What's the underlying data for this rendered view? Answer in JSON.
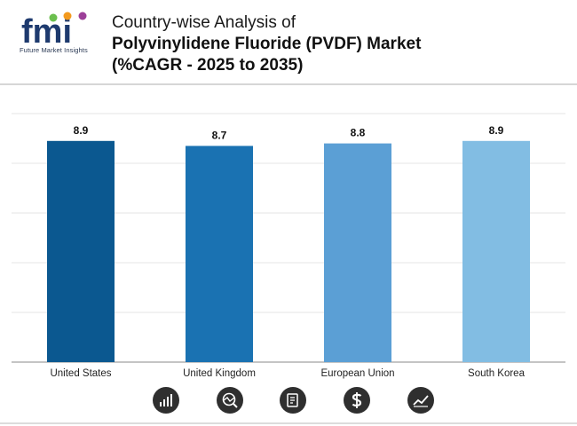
{
  "header": {
    "logo_text": "fmi",
    "logo_subtitle": "Future Market Insights",
    "title_line1": "Country-wise Analysis of",
    "title_line2": "Polyvinylidene Fluoride (PVDF) Market",
    "title_line3": "(%CAGR - 2025 to 2035)"
  },
  "chart_data": {
    "type": "bar",
    "title": "Country-wise Analysis of Polyvinylidene Fluoride (PVDF) Market (%CAGR - 2025 to 2035)",
    "categories": [
      "United States",
      "United Kingdom",
      "European Union",
      "South Korea"
    ],
    "values": [
      8.9,
      8.7,
      8.8,
      8.9
    ],
    "labels": [
      "8.9",
      "8.7",
      "8.8",
      "8.9"
    ],
    "colors": [
      "#0b5890",
      "#1a72b2",
      "#5b9fd5",
      "#82bde3"
    ],
    "xlabel": "",
    "ylabel": "",
    "ylim": [
      0,
      10
    ],
    "grid": true,
    "legend": "none"
  },
  "footer_icons": [
    "bar-growth-icon",
    "globe-analysis-icon",
    "report-document-icon",
    "dollar-icon",
    "line-trend-icon"
  ],
  "colors": {
    "logo_primary": "#1e3a6e",
    "icon_bg": "#2f2f2f"
  }
}
